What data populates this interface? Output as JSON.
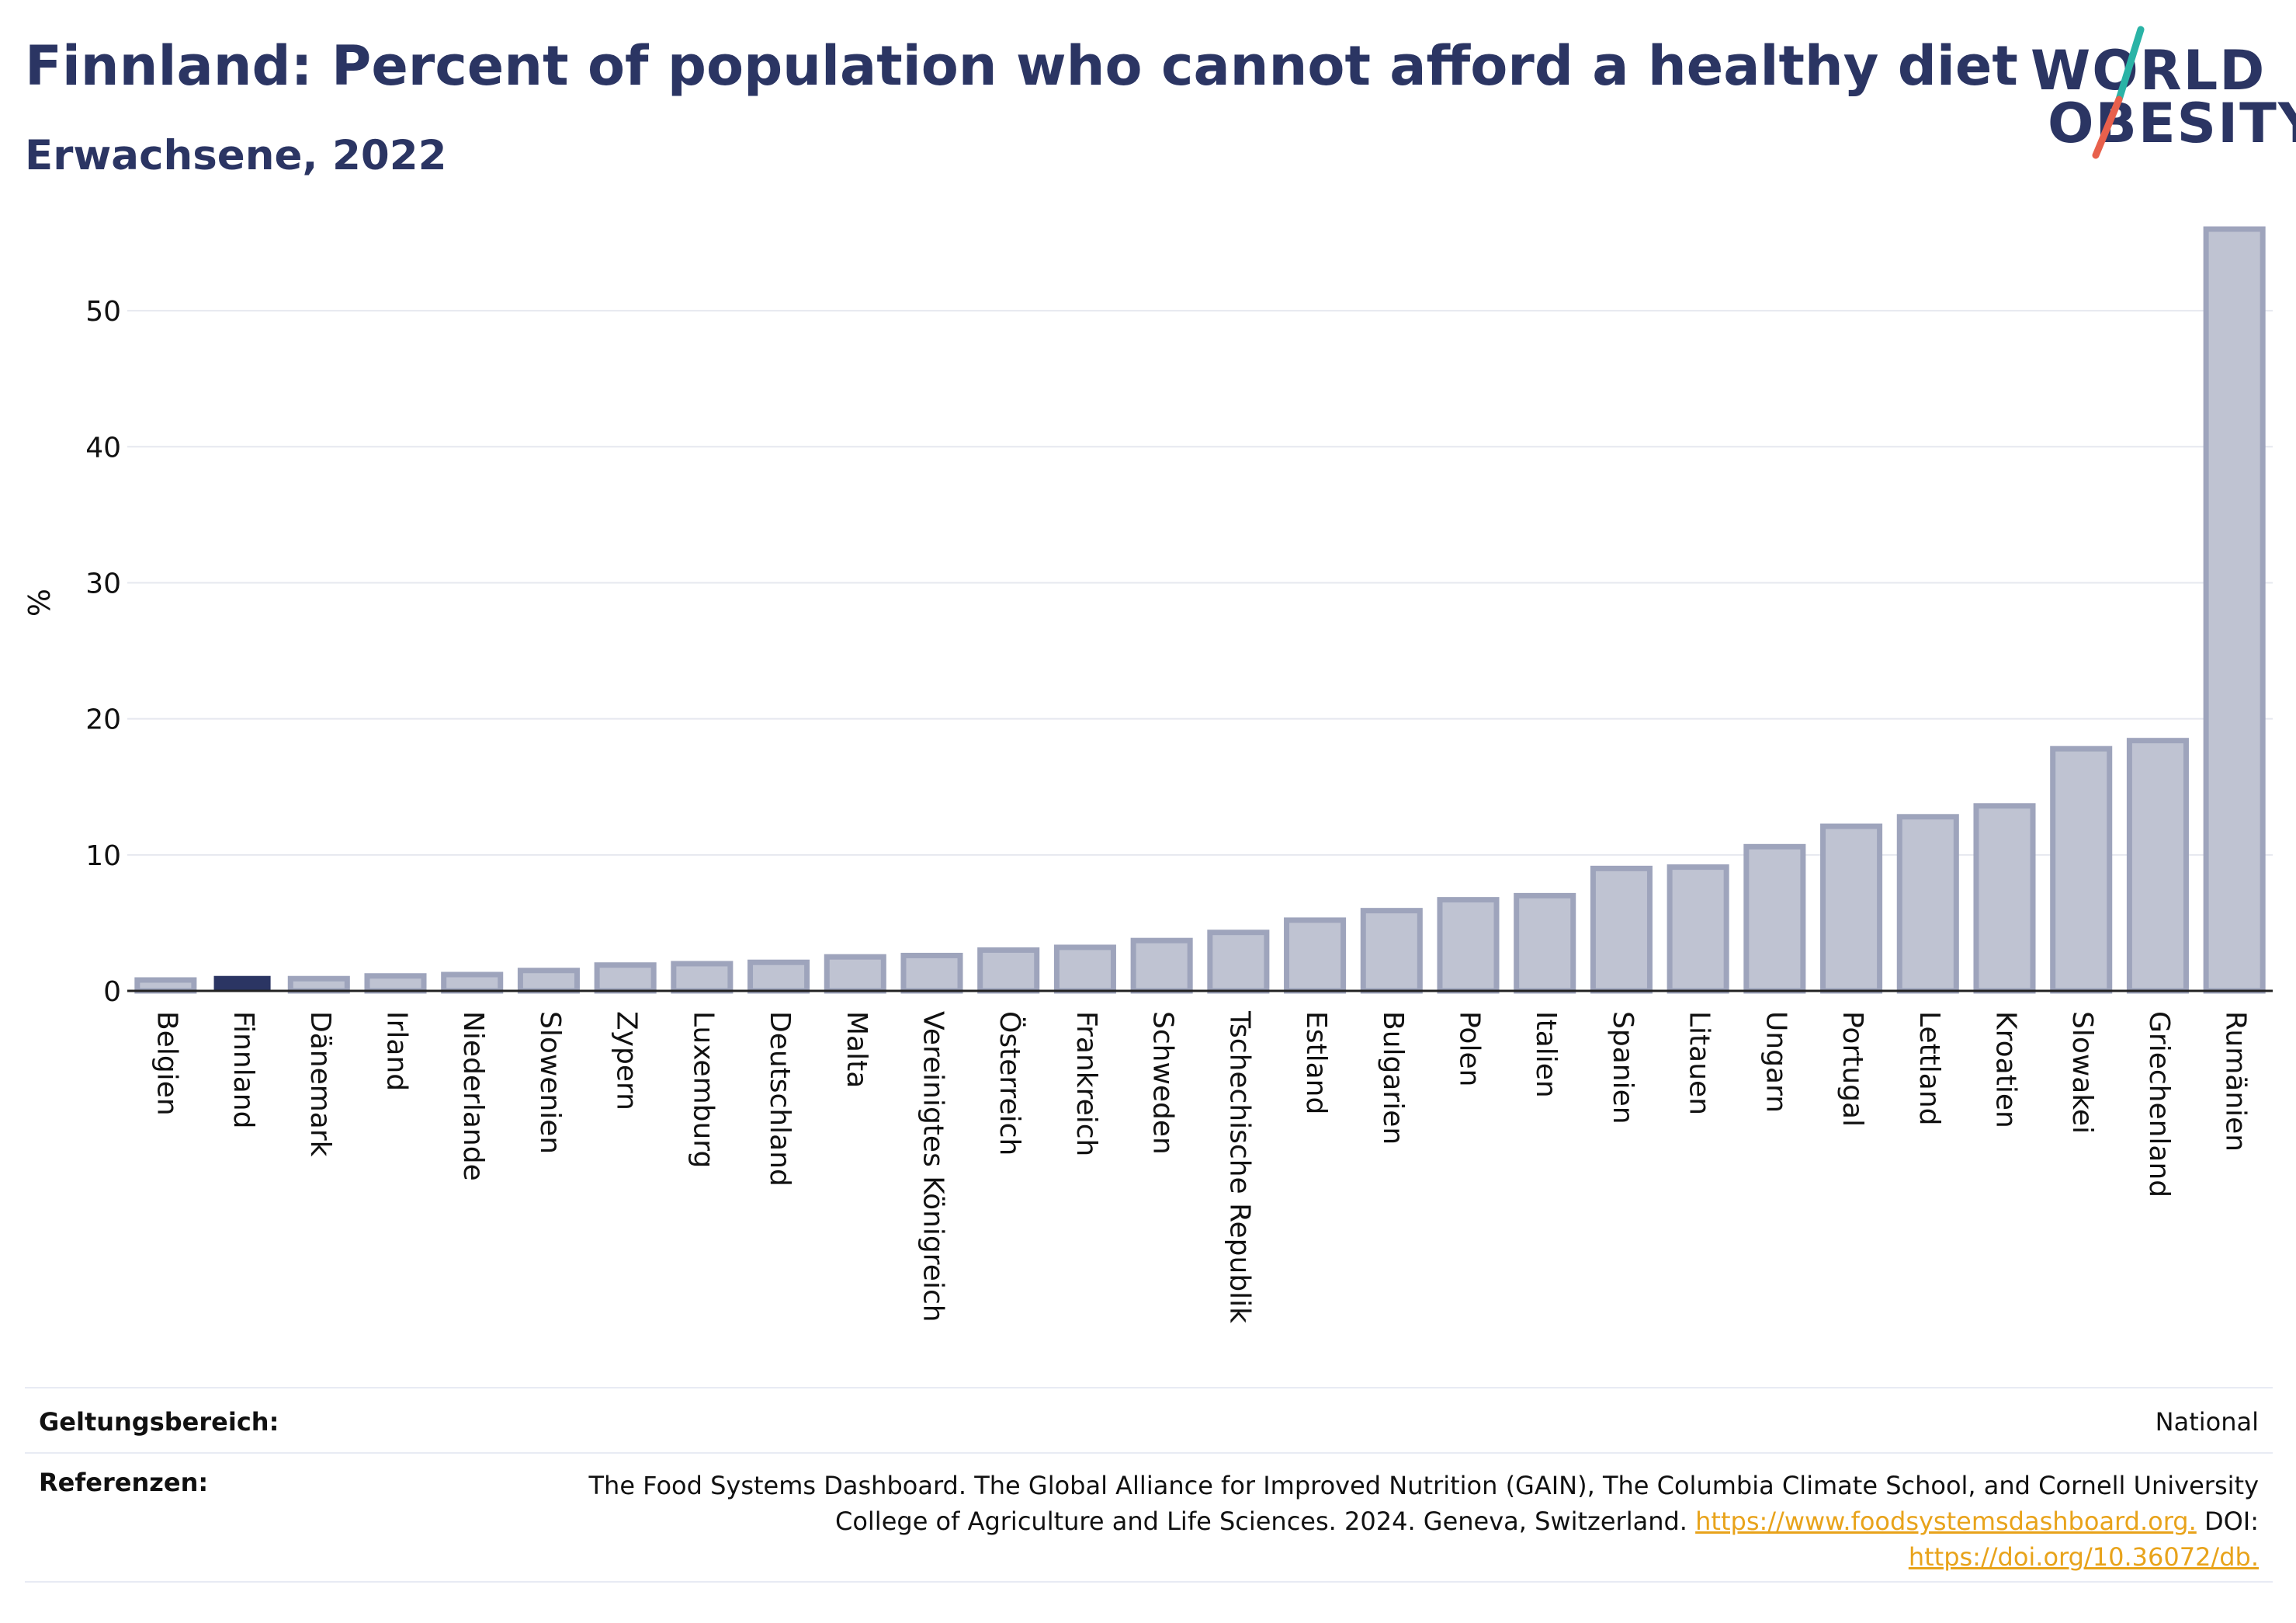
{
  "header": {
    "title": "Finnland: Percent of population who cannot afford a healthy diet",
    "subtitle": "Erwachsene, 2022"
  },
  "logo": {
    "line1": "WORLD",
    "line2": "OBESITY",
    "colors": {
      "text": "#2b3563",
      "slash_top": "#2ab3a6",
      "slash_bottom": "#e8604c"
    }
  },
  "chart_data": {
    "type": "bar",
    "ylabel": "%",
    "ylim": [
      0,
      58
    ],
    "yticks": [
      0,
      10,
      20,
      30,
      40,
      50
    ],
    "grid": true,
    "highlight": "Finnland",
    "colors": {
      "bar": "#bfc3d2",
      "bar_edge": "#9ea4bc",
      "highlight": "#2b3563"
    },
    "categories": [
      "Belgien",
      "Finnland",
      "Dänemark",
      "Irland",
      "Niederlande",
      "Slowenien",
      "Zypern",
      "Luxemburg",
      "Deutschland",
      "Malta",
      "Vereinigtes Königreich",
      "Österreich",
      "Frankreich",
      "Schweden",
      "Tschechische Republik",
      "Estland",
      "Bulgarien",
      "Polen",
      "Italien",
      "Spanien",
      "Litauen",
      "Ungarn",
      "Portugal",
      "Lettland",
      "Kroatien",
      "Slowakei",
      "Griechenland",
      "Rumänien"
    ],
    "values": [
      0.8,
      1.1,
      0.9,
      1.1,
      1.2,
      1.5,
      1.9,
      2.0,
      2.1,
      2.5,
      2.6,
      3.0,
      3.2,
      3.7,
      4.3,
      5.2,
      5.9,
      6.7,
      7.0,
      9.0,
      9.1,
      10.6,
      12.1,
      12.8,
      13.6,
      17.8,
      18.4,
      56.0
    ]
  },
  "footer": {
    "scope_label": "Geltungsbereich:",
    "scope_value": "National",
    "references_label": "Referenzen:",
    "references_text_1": "The Food Systems Dashboard. The Global Alliance for Improved Nutrition (GAIN), The Columbia Climate School, and Cornell University",
    "references_text_2": "College of Agriculture and Life Sciences. 2024. Geneva, Switzerland.",
    "references_link_1": "https://www.foodsystemsdashboard.org.",
    "references_doi_label": "DOI:",
    "references_link_2": "https://doi.org/10.36072/db."
  }
}
